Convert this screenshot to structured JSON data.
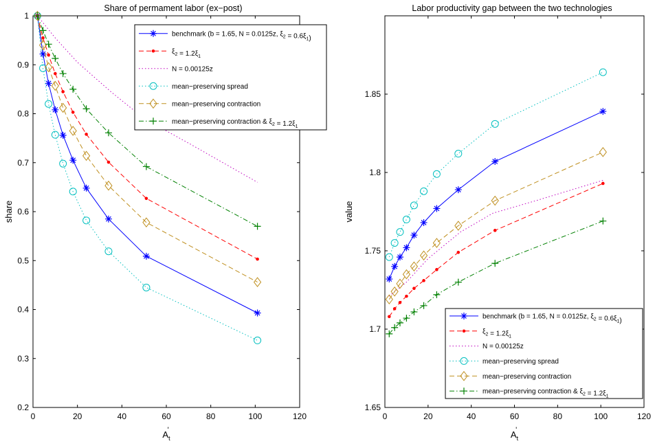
{
  "chart_data": [
    {
      "type": "line",
      "title": "Share of permament labor (ex−post)",
      "xlabel": "A",
      "xlabel_sub": "t",
      "xlabel_sup": "'",
      "ylabel": "share",
      "xlim": [
        0,
        120
      ],
      "ylim": [
        0.2,
        1.0
      ],
      "xticks": [
        0,
        20,
        40,
        60,
        80,
        100,
        120
      ],
      "yticks": [
        0.2,
        0.3,
        0.4,
        0.5,
        0.6,
        0.7,
        0.8,
        0.9,
        1.0
      ],
      "ytick_labels": [
        "0.2",
        "0.3",
        "0.4",
        "0.5",
        "0.6",
        "0.7",
        "0.8",
        "0.9",
        "1"
      ],
      "grid": false,
      "legend_position": "top-right",
      "series": [
        {
          "name": "benchmark (b = 1.65, N = 0.0125z, ξ₂ = 0.6ξ₁)",
          "color": "#0000ff",
          "linestyle": "solid",
          "marker": "asterisk",
          "x": [
            2,
            4.5,
            7,
            10,
            13.5,
            18,
            24,
            34,
            51,
            101
          ],
          "y": [
            1.0,
            0.922,
            0.862,
            0.808,
            0.756,
            0.705,
            0.648,
            0.585,
            0.509,
            0.393
          ]
        },
        {
          "name": "ξ₂ = 1.2ξ₁",
          "color": "#ff0000",
          "linestyle": "dashed",
          "marker": "point",
          "x": [
            2,
            4.5,
            7,
            10,
            13.5,
            18,
            24,
            34,
            51,
            101
          ],
          "y": [
            1.0,
            0.955,
            0.92,
            0.882,
            0.845,
            0.803,
            0.758,
            0.701,
            0.627,
            0.503
          ]
        },
        {
          "name": "N = 0.00125z",
          "color": "#bf00bf",
          "linestyle": "dotted",
          "marker": "none",
          "x": [
            2,
            10,
            20,
            35,
            50,
            70,
            101
          ],
          "y": [
            1.0,
            0.955,
            0.905,
            0.845,
            0.79,
            0.74,
            0.66
          ]
        },
        {
          "name": "mean−preserving spread",
          "color": "#00bfbf",
          "linestyle": "dotted",
          "marker": "circle",
          "x": [
            2,
            4.5,
            7,
            10,
            13.5,
            18,
            24,
            34,
            51,
            101
          ],
          "y": [
            1.0,
            0.893,
            0.82,
            0.757,
            0.698,
            0.641,
            0.582,
            0.519,
            0.445,
            0.337
          ]
        },
        {
          "name": "mean−preserving contraction",
          "color": "#bf8f1f",
          "linestyle": "dashed",
          "marker": "diamond",
          "x": [
            2,
            4.5,
            7,
            10,
            13.5,
            18,
            24,
            34,
            51,
            101
          ],
          "y": [
            1.0,
            0.94,
            0.895,
            0.857,
            0.812,
            0.765,
            0.714,
            0.653,
            0.578,
            0.456
          ]
        },
        {
          "name": "mean−preserving contraction & ξ₂ = 1.2ξ₁",
          "color": "#008000",
          "linestyle": "dashdot",
          "marker": "plus",
          "x": [
            2,
            4.5,
            7,
            10,
            13.5,
            18,
            24,
            34,
            51,
            101
          ],
          "y": [
            1.0,
            0.97,
            0.942,
            0.913,
            0.882,
            0.85,
            0.81,
            0.761,
            0.692,
            0.57
          ]
        }
      ]
    },
    {
      "type": "line",
      "title": "Labor productivity gap between the two technologies",
      "xlabel": "A",
      "xlabel_sub": "t",
      "xlabel_sup": "'",
      "ylabel": "value",
      "xlim": [
        0,
        120
      ],
      "ylim": [
        1.65,
        1.9
      ],
      "xticks": [
        0,
        20,
        40,
        60,
        80,
        100,
        120
      ],
      "yticks": [
        1.65,
        1.7,
        1.75,
        1.8,
        1.85
      ],
      "ytick_labels": [
        "1.65",
        "1.7",
        "1.75",
        "1.8",
        "1.85"
      ],
      "grid": false,
      "legend_position": "bottom-right",
      "series": [
        {
          "name": "benchmark (b = 1.65, N = 0.0125z, ξ₂ = 0.6ξ₁)",
          "color": "#0000ff",
          "linestyle": "solid",
          "marker": "asterisk",
          "x": [
            2,
            4.5,
            7,
            10,
            13.5,
            18,
            24,
            34,
            51,
            101
          ],
          "y": [
            1.732,
            1.74,
            1.746,
            1.752,
            1.76,
            1.768,
            1.777,
            1.789,
            1.807,
            1.839
          ]
        },
        {
          "name": "ξ₂ = 1.2ξ₁",
          "color": "#ff0000",
          "linestyle": "dashed",
          "marker": "point",
          "x": [
            2,
            4.5,
            7,
            10,
            13.5,
            18,
            24,
            34,
            51,
            101
          ],
          "y": [
            1.708,
            1.713,
            1.717,
            1.721,
            1.726,
            1.731,
            1.738,
            1.749,
            1.763,
            1.793
          ]
        },
        {
          "name": "N = 0.00125z",
          "color": "#bf00bf",
          "linestyle": "dotted",
          "marker": "none",
          "x": [
            2,
            10,
            20,
            35,
            50,
            70,
            101
          ],
          "y": [
            1.721,
            1.73,
            1.745,
            1.762,
            1.774,
            1.782,
            1.795
          ]
        },
        {
          "name": "mean−preserving spread",
          "color": "#00bfbf",
          "linestyle": "dotted",
          "marker": "circle",
          "x": [
            2,
            4.5,
            7,
            10,
            13.5,
            18,
            24,
            34,
            51,
            101
          ],
          "y": [
            1.746,
            1.755,
            1.762,
            1.77,
            1.779,
            1.788,
            1.799,
            1.812,
            1.831,
            1.864
          ]
        },
        {
          "name": "mean−preserving contraction",
          "color": "#bf8f1f",
          "linestyle": "dashed",
          "marker": "diamond",
          "x": [
            2,
            4.5,
            7,
            10,
            13.5,
            18,
            24,
            34,
            51,
            101
          ],
          "y": [
            1.719,
            1.724,
            1.729,
            1.735,
            1.74,
            1.747,
            1.755,
            1.766,
            1.782,
            1.813
          ]
        },
        {
          "name": "mean−preserving contraction & ξ₂ = 1.2ξ₁",
          "color": "#008000",
          "linestyle": "dashdot",
          "marker": "plus",
          "x": [
            2,
            4.5,
            7,
            10,
            13.5,
            18,
            24,
            34,
            51,
            101
          ],
          "y": [
            1.697,
            1.701,
            1.704,
            1.707,
            1.711,
            1.715,
            1.722,
            1.73,
            1.742,
            1.769
          ]
        }
      ]
    }
  ]
}
